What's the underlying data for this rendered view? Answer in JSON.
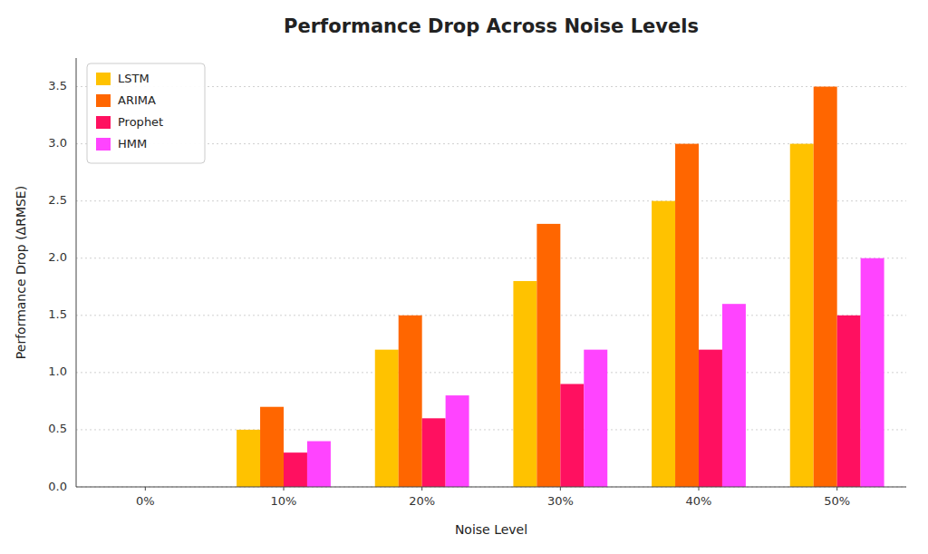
{
  "chart_data": {
    "type": "bar",
    "title": "Performance Drop Across Noise Levels",
    "xlabel": "Noise Level",
    "ylabel": "Performance Drop (ΔRMSE)",
    "categories": [
      "0%",
      "10%",
      "20%",
      "30%",
      "40%",
      "50%"
    ],
    "series": [
      {
        "name": "LSTM",
        "color": "#FFC200",
        "values": [
          0.0,
          0.5,
          1.2,
          1.8,
          2.5,
          3.0
        ]
      },
      {
        "name": "ARIMA",
        "color": "#FF6600",
        "values": [
          0.0,
          0.7,
          1.5,
          2.3,
          3.0,
          3.5
        ]
      },
      {
        "name": "Prophet",
        "color": "#FF1060",
        "values": [
          0.0,
          0.3,
          0.6,
          0.9,
          1.2,
          1.5
        ]
      },
      {
        "name": "HMM",
        "color": "#FF44FF",
        "values": [
          0.0,
          0.4,
          0.8,
          1.2,
          1.6,
          2.0
        ]
      }
    ],
    "ylim": [
      0,
      3.75
    ],
    "yticks": [
      {
        "value": 0,
        "label": "0.0"
      },
      0.5,
      {
        "value": 1,
        "label": "1.0"
      },
      1.5,
      {
        "value": 2,
        "label": "2.0"
      },
      2.5,
      {
        "value": 3,
        "label": "3.0"
      },
      3.5
    ],
    "grid": true,
    "legend": "upper left"
  }
}
